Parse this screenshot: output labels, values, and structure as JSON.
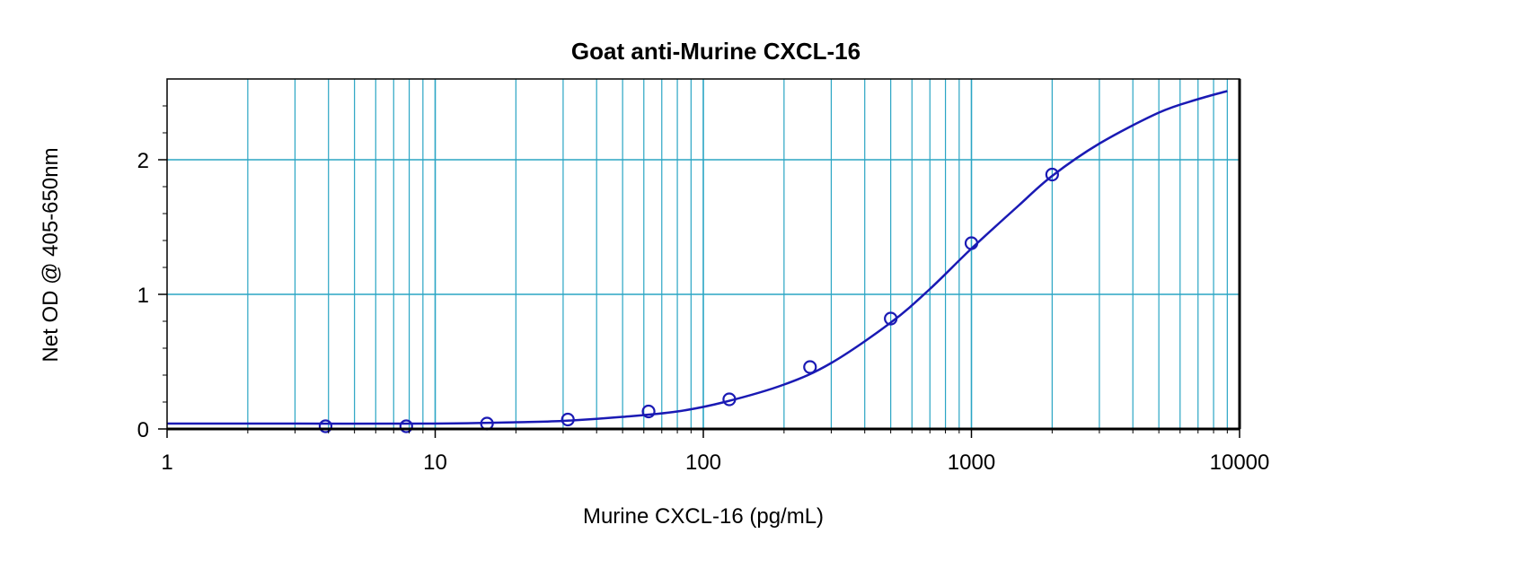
{
  "chart_data": {
    "type": "scatter",
    "title": "Goat anti-Murine CXCL-16",
    "xlabel": "Murine CXCL-16 (pg/mL)",
    "ylabel": "Net OD @ 405-650nm",
    "x_scale": "log",
    "xlim": [
      1,
      10000
    ],
    "ylim": [
      0,
      2.6
    ],
    "x_ticks": [
      "1",
      "10",
      "100",
      "1000",
      "10000"
    ],
    "y_ticks": [
      "0",
      "1",
      "2"
    ],
    "grid": true,
    "points": {
      "x": [
        3.9,
        7.8,
        15.6,
        31.25,
        62.5,
        125,
        250,
        500,
        1000,
        2000
      ],
      "y": [
        0.02,
        0.02,
        0.04,
        0.07,
        0.13,
        0.22,
        0.46,
        0.82,
        1.38,
        1.89
      ]
    },
    "fit_curve": {
      "x": [
        1,
        3,
        10,
        20,
        30,
        50,
        80,
        120,
        200,
        300,
        500,
        700,
        1000,
        1500,
        2000,
        3000,
        5000,
        7000,
        9000
      ],
      "y": [
        0.04,
        0.04,
        0.04,
        0.05,
        0.06,
        0.09,
        0.13,
        0.2,
        0.33,
        0.49,
        0.79,
        1.04,
        1.34,
        1.66,
        1.88,
        2.12,
        2.35,
        2.45,
        2.51
      ]
    },
    "colors": {
      "grid": "#2aa5c4",
      "series": "#1a1ab4",
      "axis": "#000000"
    }
  }
}
